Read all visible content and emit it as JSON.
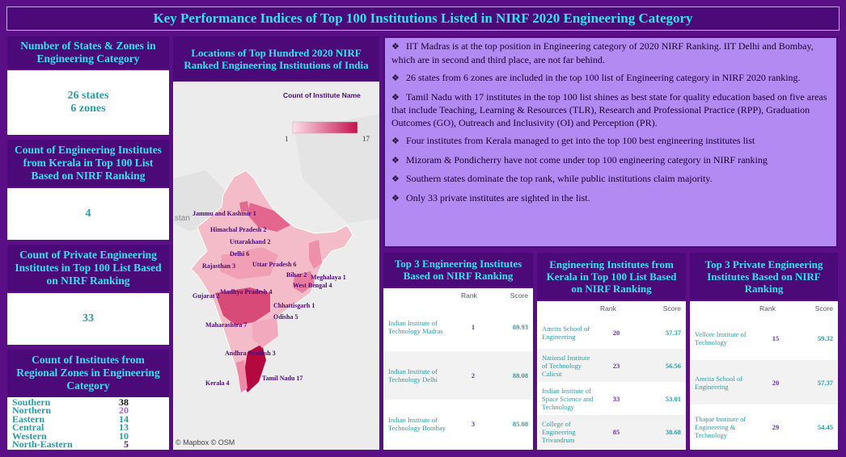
{
  "title": "Key Performance Indices of Top 100 Institutions Listed in NIRF 2020 Engineering Category",
  "states_zones": {
    "heading": "Number of States & Zones in Engineering Category",
    "states": "26 states",
    "zones": "6 zones"
  },
  "kerala_count": {
    "heading": "Count of Engineering Institutes from Kerala in Top 100 List Based on NIRF Ranking",
    "value": "4"
  },
  "private_count": {
    "heading": "Count of Private Engineering Institutes in Top 100 List  Based on NIRF Ranking",
    "value": "33"
  },
  "zones": {
    "heading": "Count of Institutes from Regional Zones in Engineering Category",
    "rows": [
      {
        "name": "Southern",
        "value": "38",
        "color": "#111111"
      },
      {
        "name": "Northern",
        "value": "20",
        "color": "#a066d8"
      },
      {
        "name": "Eastern",
        "value": "14",
        "color": "#2a9da3"
      },
      {
        "name": "Central",
        "value": "13",
        "color": "#2a9da3"
      },
      {
        "name": "Western",
        "value": "10",
        "color": "#2a9da3"
      },
      {
        "name": "North-Eastern",
        "value": "5",
        "color": "#4b0a78"
      }
    ]
  },
  "map": {
    "heading": "Locations of Top Hundred 2020 NIRF Ranked Engineering Institutions of India",
    "legend_title": "Count of Institute Name",
    "legend_min": "1",
    "legend_max": "17",
    "stan_label": "stan",
    "credit": "© Mapbox © OSM",
    "labels": [
      {
        "text": "Jammu and Kashmir 1",
        "count": 1
      },
      {
        "text": "Himachal Pradesh 2",
        "count": 2
      },
      {
        "text": "Uttarakhand 2",
        "count": 2
      },
      {
        "text": "Delhi 6",
        "count": 6
      },
      {
        "text": "Uttar Pradesh 6",
        "count": 6
      },
      {
        "text": "Rajasthan 3",
        "count": 3
      },
      {
        "text": "Bihar 2",
        "count": 2
      },
      {
        "text": "Meghalaya 1",
        "count": 1
      },
      {
        "text": "West Bengal 4",
        "count": 4
      },
      {
        "text": "Gujarat 2",
        "count": 2
      },
      {
        "text": "Madhya Pradesh 4",
        "count": 4
      },
      {
        "text": "Chhattisgarh 1",
        "count": 1
      },
      {
        "text": "Odisha 5",
        "count": 5
      },
      {
        "text": "Maharashtra 7",
        "count": 7
      },
      {
        "text": "Andhra Pradesh 3",
        "count": 3
      },
      {
        "text": "Kerala 4",
        "count": 4
      },
      {
        "text": "Tamil Nadu 17",
        "count": 17
      }
    ]
  },
  "insights": [
    "IIT Madras is at the top position in Engineering category of 2020 NIRF Ranking. IIT Delhi and Bombay, which are in second and third place, are not far behind.",
    "26 states from 6 zones are included in the top 100 list of Engineering category in NIRF 2020 ranking.",
    "Tamil Nadu with 17 institutes in the top 100 list shines as best state for quality education based on five areas that include Teaching, Learning & Resources (TLR), Research and Professional Practice (RPP), Graduation Outcomes (GO), Outreach and Inclusivity (OI) and Perception (PR).",
    "Four institutes from Kerala managed to get into the top 100 best engineering institutes list",
    "Mizoram & Pondicherry have not come under top 100 engineering category in NIRF ranking",
    "Southern states dominate the top rank, while public institutions claim majority.",
    "Only 33 private institutes are sighted in the list."
  ],
  "top3": {
    "heading": "Top 3 Engineering Institutes Based on NIRF Ranking",
    "col_rank": "Rank",
    "col_score": "Score",
    "rows": [
      {
        "name": "Indian Institute of Technology Madras",
        "rank": "1",
        "score": "89.93"
      },
      {
        "name": "Indian Institute of Technology Delhi",
        "rank": "2",
        "score": "88.08"
      },
      {
        "name": "Indian Institute of Technology Bombay",
        "rank": "3",
        "score": "85.08"
      }
    ]
  },
  "kerala_table": {
    "heading": "Engineering Institutes from Kerala in Top 100 List  Based on NIRF Ranking",
    "col_rank": "Rank",
    "col_score": "Score",
    "rows": [
      {
        "name": "Amrita School of Engineering",
        "rank": "20",
        "score": "57.37"
      },
      {
        "name": "National Institute of Technology Calicut",
        "rank": "23",
        "score": "56.56"
      },
      {
        "name": "Indian Institute of Space Science and Technology",
        "rank": "33",
        "score": "53.01"
      },
      {
        "name": "College of Engineering Trivandrum",
        "rank": "85",
        "score": "38.68"
      }
    ]
  },
  "private_table": {
    "heading": "Top 3 Private Engineering Institutes Based on NIRF Ranking",
    "col_rank": "Rank",
    "col_score": "Score",
    "rows": [
      {
        "name": "Vellore Institute of Technology",
        "rank": "15",
        "score": "59.32"
      },
      {
        "name": "Amrita School of Engineering",
        "rank": "20",
        "score": "57.37"
      },
      {
        "name": "Thapar Institute of Engineering & Technology",
        "rank": "29",
        "score": "54.45"
      }
    ]
  }
}
